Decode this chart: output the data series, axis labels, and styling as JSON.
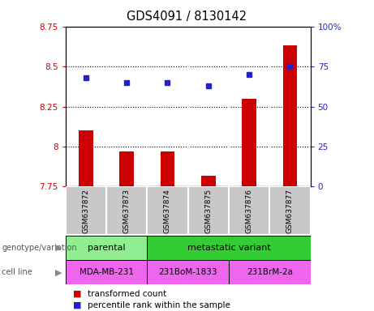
{
  "title": "GDS4091 / 8130142",
  "samples": [
    "GSM637872",
    "GSM637873",
    "GSM637874",
    "GSM637875",
    "GSM637876",
    "GSM637877"
  ],
  "bar_values": [
    8.1,
    7.97,
    7.97,
    7.82,
    8.3,
    8.63
  ],
  "percentile_values": [
    68,
    65,
    65,
    63,
    70,
    75
  ],
  "bar_color": "#cc0000",
  "dot_color": "#2222cc",
  "ylim_left": [
    7.75,
    8.75
  ],
  "ylim_right": [
    0,
    100
  ],
  "yticks_left": [
    7.75,
    8.0,
    8.25,
    8.5,
    8.75
  ],
  "yticks_right": [
    0,
    25,
    50,
    75,
    100
  ],
  "ytick_labels_left": [
    "7.75",
    "8",
    "8.25",
    "8.5",
    "8.75"
  ],
  "ytick_labels_right": [
    "0",
    "25",
    "50",
    "75",
    "100%"
  ],
  "hlines": [
    8.0,
    8.25,
    8.5
  ],
  "parental_color": "#90ee90",
  "metastatic_color": "#33cc33",
  "cell_color": "#ee66ee",
  "sample_box_color": "#c8c8c8",
  "bar_width": 0.35
}
